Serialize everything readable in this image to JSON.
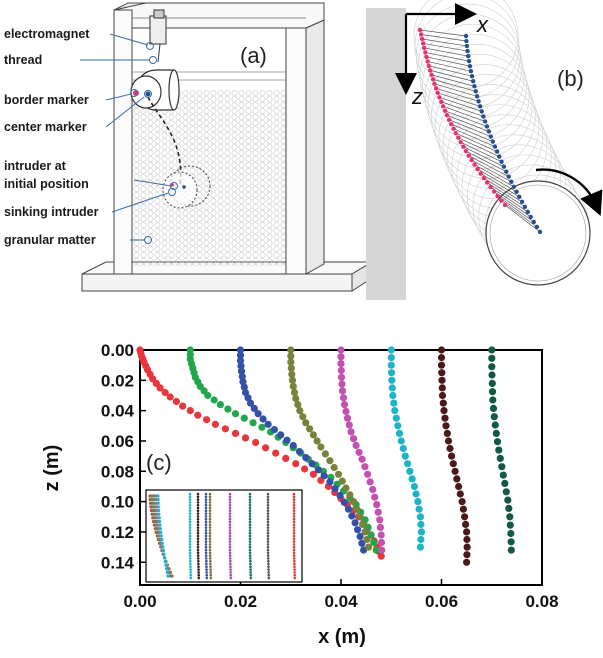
{
  "panel_a": {
    "tag": "(a)",
    "callouts": [
      "electromagnet",
      "thread",
      "border marker",
      "center marker",
      "intruder at",
      "initial position",
      "sinking intruder",
      "granular matter"
    ]
  },
  "panel_b": {
    "tag": "(b)",
    "x_axis_letter": "x",
    "z_axis_letter": "z",
    "colors": {
      "border_marker": "#e8336a",
      "center_marker": "#2a4f8f",
      "link": "#222222"
    }
  },
  "panel_c": {
    "tag": "(c)"
  },
  "chart_data": {
    "type": "scatter",
    "xlabel": "x (m)",
    "ylabel": "z (m)",
    "xlim": [
      0,
      0.08
    ],
    "ylim": [
      0,
      0.155
    ],
    "y_inverted": true,
    "xticks": [
      "0.00",
      "0.02",
      "0.04",
      "0.06",
      "0.08"
    ],
    "yticks": [
      "0.00",
      "0.02",
      "0.04",
      "0.06",
      "0.08",
      "0.10",
      "0.12",
      "0.14"
    ],
    "series": [
      {
        "color": "#e8363f",
        "x": [
          0.0,
          0.0003,
          0.0008,
          0.0015,
          0.0025,
          0.004,
          0.006,
          0.0085,
          0.0115,
          0.015,
          0.019,
          0.023,
          0.027,
          0.031,
          0.0345,
          0.0375,
          0.04,
          0.0425,
          0.0445,
          0.046,
          0.0472,
          0.048
        ],
        "z": [
          0.0,
          0.004,
          0.008,
          0.013,
          0.019,
          0.025,
          0.031,
          0.037,
          0.043,
          0.049,
          0.055,
          0.061,
          0.068,
          0.075,
          0.082,
          0.09,
          0.098,
          0.106,
          0.114,
          0.122,
          0.13,
          0.136
        ]
      },
      {
        "color": "#22a64b",
        "x": [
          0.01,
          0.01,
          0.0105,
          0.011,
          0.012,
          0.0135,
          0.016,
          0.019,
          0.0225,
          0.026,
          0.029,
          0.032,
          0.035,
          0.038,
          0.0405,
          0.043,
          0.0448,
          0.046,
          0.047
        ],
        "z": [
          0.0,
          0.006,
          0.012,
          0.018,
          0.024,
          0.03,
          0.036,
          0.042,
          0.048,
          0.054,
          0.061,
          0.068,
          0.076,
          0.084,
          0.093,
          0.102,
          0.112,
          0.122,
          0.132
        ]
      },
      {
        "color": "#3450a8",
        "x": [
          0.02,
          0.02,
          0.0202,
          0.0205,
          0.021,
          0.022,
          0.0235,
          0.0255,
          0.028,
          0.0305,
          0.033,
          0.0355,
          0.0378,
          0.0398,
          0.0415,
          0.0428,
          0.0438,
          0.0445
        ],
        "z": [
          0.0,
          0.007,
          0.014,
          0.021,
          0.028,
          0.035,
          0.042,
          0.049,
          0.056,
          0.063,
          0.071,
          0.079,
          0.087,
          0.096,
          0.105,
          0.114,
          0.123,
          0.132
        ]
      },
      {
        "color": "#79823a",
        "x": [
          0.03,
          0.03,
          0.0302,
          0.0305,
          0.031,
          0.0318,
          0.033,
          0.0345,
          0.036,
          0.0378,
          0.0395,
          0.041,
          0.0425,
          0.0438,
          0.0448,
          0.0455
        ],
        "z": [
          0.0,
          0.008,
          0.016,
          0.024,
          0.032,
          0.04,
          0.048,
          0.056,
          0.064,
          0.073,
          0.082,
          0.091,
          0.1,
          0.11,
          0.12,
          0.13
        ]
      },
      {
        "color": "#c450b0",
        "x": [
          0.04,
          0.04,
          0.0401,
          0.0403,
          0.0407,
          0.0413,
          0.042,
          0.043,
          0.0442,
          0.0453,
          0.0463,
          0.0471,
          0.0477,
          0.048,
          0.0481
        ],
        "z": [
          0.0,
          0.009,
          0.018,
          0.027,
          0.036,
          0.045,
          0.054,
          0.063,
          0.072,
          0.082,
          0.092,
          0.102,
          0.112,
          0.122,
          0.132
        ]
      },
      {
        "color": "#1fb3c8",
        "x": [
          0.05,
          0.05,
          0.0501,
          0.0503,
          0.0507,
          0.0513,
          0.052,
          0.0528,
          0.0537,
          0.0546,
          0.0553,
          0.0558,
          0.056,
          0.0558
        ],
        "z": [
          0.0,
          0.01,
          0.02,
          0.03,
          0.04,
          0.05,
          0.06,
          0.07,
          0.08,
          0.09,
          0.1,
          0.11,
          0.12,
          0.13
        ]
      },
      {
        "color": "#4a1a1a",
        "x": [
          0.06,
          0.06,
          0.0601,
          0.0602,
          0.0605,
          0.0609,
          0.0614,
          0.062,
          0.0627,
          0.0634,
          0.0641,
          0.0646,
          0.065,
          0.0651,
          0.065
        ],
        "z": [
          0.0,
          0.01,
          0.02,
          0.03,
          0.04,
          0.05,
          0.06,
          0.07,
          0.08,
          0.09,
          0.1,
          0.11,
          0.12,
          0.13,
          0.14
        ]
      },
      {
        "color": "#135a3c",
        "x": [
          0.07,
          0.07,
          0.0701,
          0.0702,
          0.0705,
          0.0709,
          0.0714,
          0.072,
          0.0726,
          0.0732,
          0.0736,
          0.0738,
          0.0739
        ],
        "z": [
          0.0,
          0.011,
          0.022,
          0.033,
          0.044,
          0.055,
          0.066,
          0.077,
          0.088,
          0.099,
          0.11,
          0.121,
          0.132
        ]
      }
    ],
    "inset": {
      "series_colors": [
        "#e8363f",
        "#22a64b",
        "#79823a",
        "#c450b0",
        "#1fb3c8",
        "#4a1a1a",
        "#3450a8",
        "#7a6e30",
        "#b04aa0",
        "#1a6e6a",
        "#555555"
      ]
    }
  }
}
